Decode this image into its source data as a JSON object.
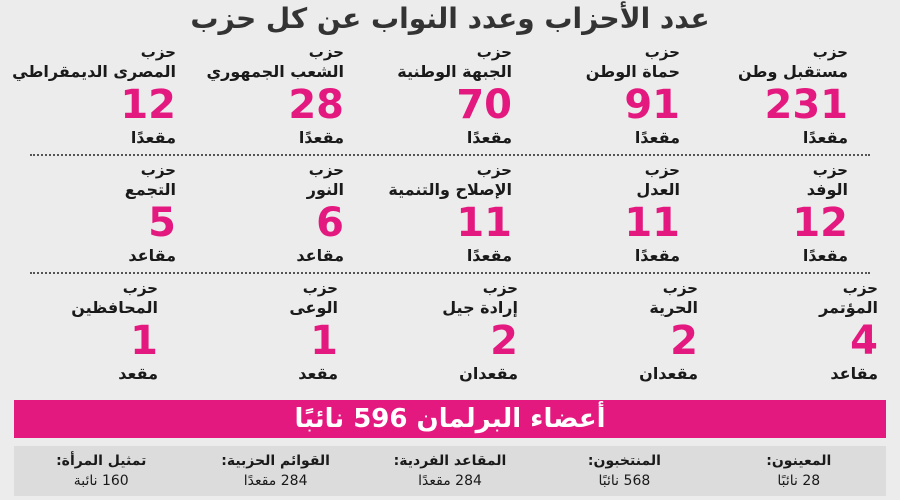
{
  "title": "عدد الأحزاب وعدد النواب عن كل حزب",
  "rows": [
    [
      {
        "prefix": "حزب",
        "name": "مستقبل وطن",
        "seats": 231,
        "unit": "مقعدًا"
      },
      {
        "prefix": "حزب",
        "name": "حماة الوطن",
        "seats": 91,
        "unit": "مقعدًا"
      },
      {
        "prefix": "حزب",
        "name": "الجبهة الوطنية",
        "seats": 70,
        "unit": "مقعدًا"
      },
      {
        "prefix": "حزب",
        "name": "الشعب الجمهوري",
        "seats": 28,
        "unit": "مقعدًا"
      },
      {
        "prefix": "حزب",
        "name": "المصرى الديمقراطي",
        "seats": 12,
        "unit": "مقعدًا"
      }
    ],
    [
      {
        "prefix": "حزب",
        "name": "الوفد",
        "seats": 12,
        "unit": "مقعدًا"
      },
      {
        "prefix": "حزب",
        "name": "العدل",
        "seats": 11,
        "unit": "مقعدًا"
      },
      {
        "prefix": "حزب",
        "name": "الإصلاح والتنمية",
        "seats": 11,
        "unit": "مقعدًا"
      },
      {
        "prefix": "حزب",
        "name": "النور",
        "seats": 6,
        "unit": "مقاعد"
      },
      {
        "prefix": "حزب",
        "name": "التجمع",
        "seats": 5,
        "unit": "مقاعد"
      }
    ],
    [
      {
        "prefix": "حزب",
        "name": "المؤتمر",
        "seats": 4,
        "unit": "مقاعد"
      },
      {
        "prefix": "حزب",
        "name": "الحرية",
        "seats": 2,
        "unit": "مقعدان"
      },
      {
        "prefix": "حزب",
        "name": "إرادة جيل",
        "seats": 2,
        "unit": "مقعدان"
      },
      {
        "prefix": "حزب",
        "name": "الوعى",
        "seats": 1,
        "unit": "مقعد"
      },
      {
        "prefix": "حزب",
        "name": "المحافظين",
        "seats": 1,
        "unit": "مقعد"
      }
    ]
  ],
  "banner": "أعضاء البرلمان 596 نائبًا",
  "stats": [
    {
      "label": "المعينون:",
      "value": "28 نائبًا"
    },
    {
      "label": "المنتخبون:",
      "value": "568 نائبًا"
    },
    {
      "label": "المقاعد الفردية:",
      "value": "284 مقعدًا"
    },
    {
      "label": "القوائم الحزبية:",
      "value": "284 مقعدًا"
    },
    {
      "label": "تمثيل المرأة:",
      "value": "160 نائبة"
    }
  ]
}
